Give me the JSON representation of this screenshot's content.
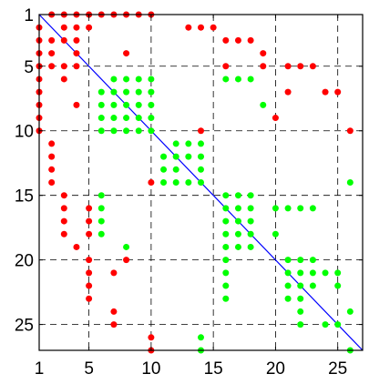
{
  "chart_data": {
    "type": "scatter",
    "title": "",
    "xlabel": "",
    "ylabel": "",
    "xlim": [
      1,
      27
    ],
    "ylim": [
      1,
      27
    ],
    "y_inverted": true,
    "grid": true,
    "xticks": [
      1,
      5,
      10,
      15,
      20,
      25
    ],
    "yticks": [
      1,
      5,
      10,
      15,
      20,
      25
    ],
    "xtick_labels": [
      "1",
      "5",
      "10",
      "15",
      "20",
      "25"
    ],
    "ytick_labels": [
      "1",
      "5",
      "10",
      "15",
      "20",
      "25"
    ],
    "colors": {
      "red": "#ff0000",
      "green": "#00ff00",
      "diagonal": "#0000ff",
      "grid": "#000000"
    },
    "diagonal_line": {
      "x": [
        1,
        27
      ],
      "y": [
        1,
        27
      ]
    },
    "series": [
      {
        "color": "red",
        "points": [
          [
            2,
            1
          ],
          [
            3,
            1
          ],
          [
            4,
            1
          ],
          [
            5,
            1
          ],
          [
            6,
            1
          ],
          [
            7,
            1
          ],
          [
            8,
            1
          ],
          [
            9,
            1
          ],
          [
            10,
            1
          ],
          [
            1,
            2
          ],
          [
            3,
            2
          ],
          [
            4,
            2
          ],
          [
            5,
            2
          ],
          [
            1,
            3
          ],
          [
            2,
            3
          ],
          [
            3,
            3
          ],
          [
            4,
            3
          ],
          [
            1,
            4
          ],
          [
            2,
            4
          ],
          [
            4,
            4
          ],
          [
            8,
            4
          ],
          [
            1,
            5
          ],
          [
            2,
            5
          ],
          [
            3,
            5
          ],
          [
            4,
            5
          ],
          [
            1,
            6
          ],
          [
            3,
            6
          ],
          [
            1,
            7
          ],
          [
            1,
            8
          ],
          [
            4,
            8
          ],
          [
            1,
            9
          ],
          [
            1,
            10
          ],
          [
            2,
            11
          ],
          [
            2,
            12
          ],
          [
            2,
            13
          ],
          [
            2,
            14
          ],
          [
            3,
            15
          ],
          [
            3,
            16
          ],
          [
            5,
            16
          ],
          [
            3,
            17
          ],
          [
            5,
            17
          ],
          [
            3,
            18
          ],
          [
            5,
            18
          ],
          [
            4,
            19
          ],
          [
            5,
            20
          ],
          [
            8,
            20
          ],
          [
            5,
            21
          ],
          [
            7,
            21
          ],
          [
            5,
            22
          ],
          [
            5,
            23
          ],
          [
            7,
            24
          ],
          [
            7,
            25
          ],
          [
            10,
            26
          ],
          [
            10,
            27
          ],
          [
            13,
            2
          ],
          [
            14,
            2
          ],
          [
            15,
            2
          ],
          [
            16,
            3
          ],
          [
            17,
            3
          ],
          [
            18,
            3
          ],
          [
            19,
            4
          ],
          [
            16,
            5
          ],
          [
            19,
            5
          ],
          [
            21,
            5
          ],
          [
            22,
            5
          ],
          [
            23,
            5
          ],
          [
            21,
            7
          ],
          [
            24,
            7
          ],
          [
            25,
            7
          ],
          [
            20,
            9
          ],
          [
            14,
            10
          ],
          [
            26,
            10
          ],
          [
            10,
            14
          ]
        ]
      },
      {
        "color": "green",
        "points": [
          [
            7,
            6
          ],
          [
            8,
            6
          ],
          [
            9,
            6
          ],
          [
            10,
            6
          ],
          [
            6,
            7
          ],
          [
            7,
            7
          ],
          [
            8,
            7
          ],
          [
            9,
            7
          ],
          [
            10,
            7
          ],
          [
            6,
            8
          ],
          [
            7,
            8
          ],
          [
            8,
            8
          ],
          [
            9,
            8
          ],
          [
            10,
            8
          ],
          [
            6,
            9
          ],
          [
            7,
            9
          ],
          [
            8,
            9
          ],
          [
            9,
            9
          ],
          [
            10,
            9
          ],
          [
            6,
            10
          ],
          [
            7,
            10
          ],
          [
            8,
            10
          ],
          [
            9,
            10
          ],
          [
            10,
            10
          ],
          [
            16,
            6
          ],
          [
            17,
            6
          ],
          [
            18,
            6
          ],
          [
            19,
            8
          ],
          [
            12,
            11
          ],
          [
            13,
            11
          ],
          [
            14,
            11
          ],
          [
            11,
            12
          ],
          [
            12,
            12
          ],
          [
            13,
            12
          ],
          [
            14,
            12
          ],
          [
            11,
            13
          ],
          [
            12,
            13
          ],
          [
            14,
            13
          ],
          [
            11,
            14
          ],
          [
            12,
            14
          ],
          [
            13,
            14
          ],
          [
            14,
            14
          ],
          [
            6,
            15
          ],
          [
            6,
            16
          ],
          [
            6,
            17
          ],
          [
            6,
            18
          ],
          [
            8,
            19
          ],
          [
            14,
            26
          ],
          [
            14,
            27
          ],
          [
            16,
            15
          ],
          [
            17,
            15
          ],
          [
            18,
            15
          ],
          [
            16,
            16
          ],
          [
            17,
            16
          ],
          [
            18,
            16
          ],
          [
            20,
            16
          ],
          [
            21,
            16
          ],
          [
            22,
            16
          ],
          [
            23,
            16
          ],
          [
            16,
            17
          ],
          [
            17,
            17
          ],
          [
            18,
            17
          ],
          [
            16,
            18
          ],
          [
            17,
            18
          ],
          [
            18,
            18
          ],
          [
            20,
            18
          ],
          [
            16,
            19
          ],
          [
            17,
            19
          ],
          [
            18,
            19
          ],
          [
            16,
            20
          ],
          [
            21,
            20
          ],
          [
            22,
            20
          ],
          [
            23,
            20
          ],
          [
            16,
            21
          ],
          [
            21,
            21
          ],
          [
            22,
            21
          ],
          [
            23,
            21
          ],
          [
            24,
            21
          ],
          [
            25,
            21
          ],
          [
            16,
            22
          ],
          [
            21,
            22
          ],
          [
            22,
            22
          ],
          [
            23,
            22
          ],
          [
            25,
            22
          ],
          [
            16,
            23
          ],
          [
            21,
            23
          ],
          [
            22,
            23
          ],
          [
            22,
            24
          ],
          [
            26,
            24
          ],
          [
            22,
            25
          ],
          [
            24,
            25
          ],
          [
            25,
            25
          ],
          [
            26,
            27
          ],
          [
            26,
            14
          ]
        ]
      }
    ]
  }
}
